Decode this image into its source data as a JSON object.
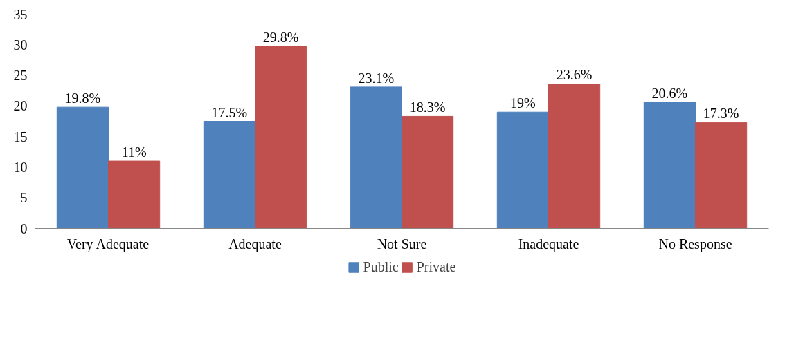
{
  "chart_data": {
    "type": "bar",
    "categories": [
      "Very Adequate",
      "Adequate",
      "Not Sure",
      "Inadequate",
      "No Response"
    ],
    "series": [
      {
        "name": "Public",
        "color": "#4f81bd",
        "values": [
          19.8,
          17.5,
          23.1,
          19,
          20.6
        ],
        "value_labels": [
          "19.8%",
          "17.5%",
          "23.1%",
          "19%",
          "20.6%"
        ]
      },
      {
        "name": "Private",
        "color": "#c0504d",
        "values": [
          11,
          29.8,
          18.3,
          23.6,
          17.3
        ],
        "value_labels": [
          "11%",
          "29.8%",
          "18.3%",
          "23.6%",
          "17.3%"
        ]
      }
    ],
    "ylim": [
      0,
      35
    ],
    "yticks": [
      0,
      5,
      10,
      15,
      20,
      25,
      30,
      35
    ],
    "grid": false,
    "legend": "bottom"
  }
}
